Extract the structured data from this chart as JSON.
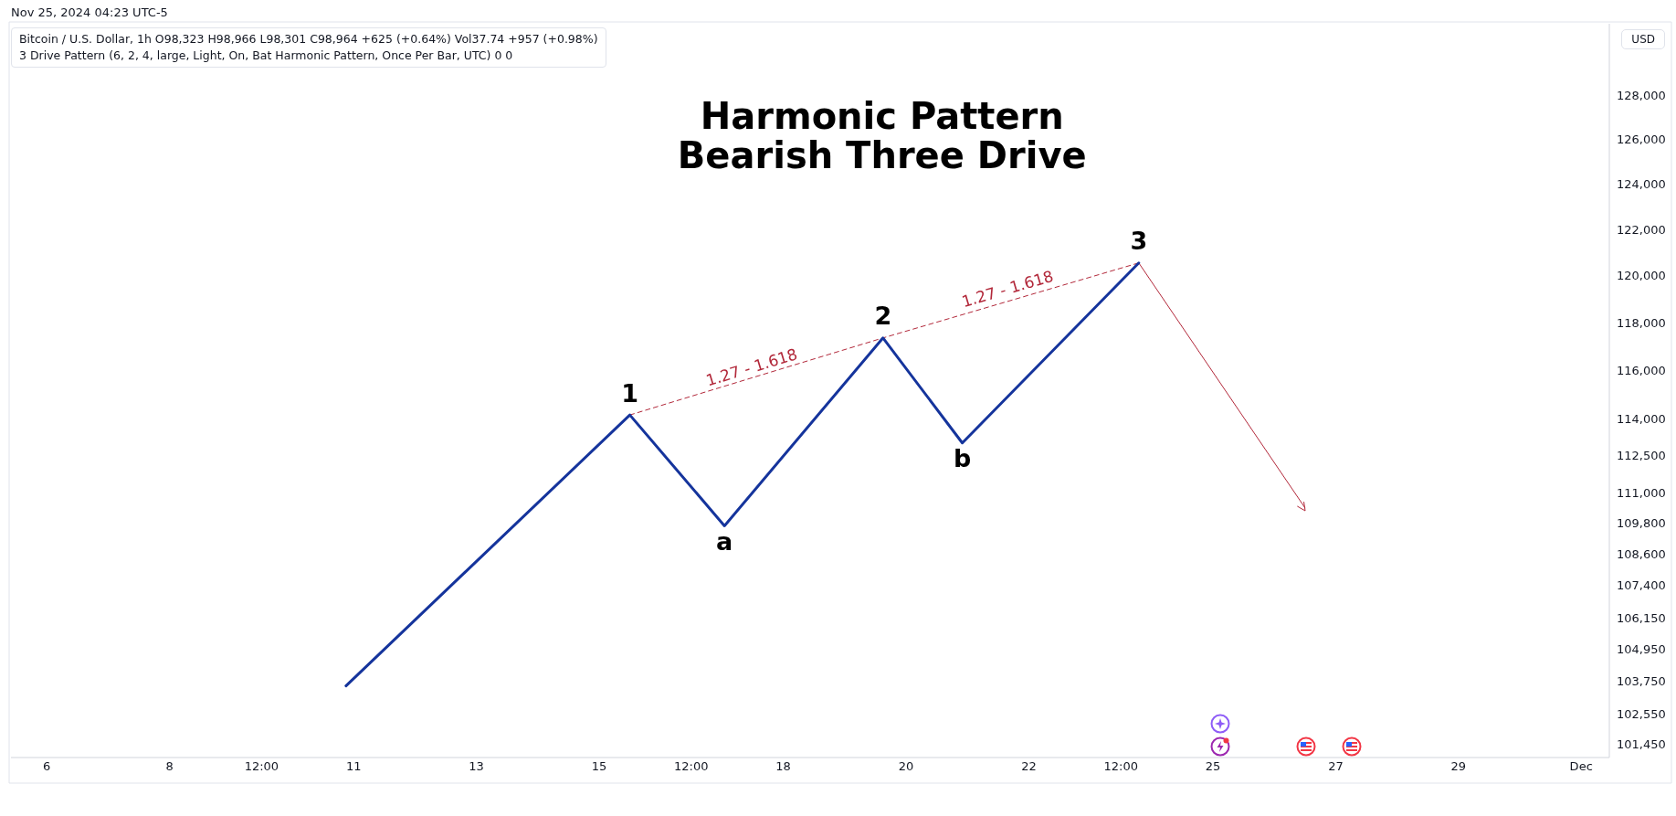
{
  "chart_data": {
    "type": "line",
    "title": "Harmonic Pattern",
    "subtitle": "Bearish Three Drive",
    "ylabel": "USD",
    "annotations": [
      "Nov 25, 2024 04:23 UTC-5",
      "Bitcoin / U.S. Dollar, 1h  O98,323  H98,966  L98,301  C98,964  +625 (+0.64%)  Vol37.74  +957 (+0.98%)",
      "3 Drive Pattern (6, 2, 4, large, Light, On, Bat Harmonic Pattern, Once Per Bar, UTC)  0  0",
      {
        "text": "1",
        "x": "2024-11-15T12:00",
        "y": 114200
      },
      {
        "text": "a",
        "x": "2024-11-17T01:00",
        "y": 109750
      },
      {
        "text": "2",
        "x": "2024-11-19T15:00",
        "y": 117400
      },
      {
        "text": "b",
        "x": "2024-11-20T22:00",
        "y": 113060
      },
      {
        "text": "3",
        "x": "2024-11-23T19:00",
        "y": 120600
      },
      {
        "text": "1.27 - 1.618",
        "x": "2024-11-17T13:00",
        "y": 115700
      },
      {
        "text": "1.27 - 1.618",
        "x": "2024-11-21T17:00",
        "y": 119000
      }
    ],
    "series": [
      {
        "type": "line",
        "color": "#15349c",
        "x": [
          "2024-11-10T21:00",
          "2024-11-15T12:00",
          "2024-11-17T01:00",
          "2024-11-19T15:00",
          "2024-11-20T22:00",
          "2024-11-23T19:00"
        ],
        "values": [
          103630,
          114200,
          109750,
          117400,
          113060,
          120600
        ]
      },
      {
        "type": "line",
        "color": "#b2283a",
        "line_style": "dashed",
        "x": [
          "2024-11-15T12:00",
          "2024-11-19T15:00",
          "2024-11-23T19:00"
        ],
        "values": [
          114200,
          117400,
          120600
        ]
      },
      {
        "type": "line",
        "color": "#b2283a",
        "x": [
          "2024-11-23T19:00",
          "2024-11-26T12:00"
        ],
        "values": [
          120600,
          110460
        ]
      }
    ],
    "log": "y",
    "legend": false,
    "grid": false,
    "xlim": [
      "2024-11-05T10:00",
      "2024-12-01T11:00"
    ],
    "xticks": [
      {
        "value": "2024-11-06",
        "label": "6"
      },
      {
        "value": "2024-11-08",
        "label": "8"
      },
      {
        "value": "2024-11-09T12:00",
        "label": "12:00"
      },
      {
        "value": "2024-11-11",
        "label": "11"
      },
      {
        "value": "2024-11-13",
        "label": "13"
      },
      {
        "value": "2024-11-15",
        "label": "15"
      },
      {
        "value": "2024-11-16T12:00",
        "label": "12:00"
      },
      {
        "value": "2024-11-18",
        "label": "18"
      },
      {
        "value": "2024-11-20",
        "label": "20"
      },
      {
        "value": "2024-11-22",
        "label": "22"
      },
      {
        "value": "2024-11-23T12:00",
        "label": "12:00"
      },
      {
        "value": "2024-11-25",
        "label": "25"
      },
      {
        "value": "2024-11-27",
        "label": "27"
      },
      {
        "value": "2024-11-29",
        "label": "29"
      },
      {
        "value": "2024-12-01",
        "label": "Dec"
      }
    ],
    "ylim": [
      101000,
      131400
    ],
    "yticks": [
      {
        "value": 101450,
        "label": "101,450"
      },
      {
        "value": 102550,
        "label": "102,550"
      },
      {
        "value": 103750,
        "label": "103,750"
      },
      {
        "value": 104950,
        "label": "104,950"
      },
      {
        "value": 106150,
        "label": "106,150"
      },
      {
        "value": 107400,
        "label": "107,400"
      },
      {
        "value": 108600,
        "label": "108,600"
      },
      {
        "value": 109800,
        "label": "109,800"
      },
      {
        "value": 111000,
        "label": "111,000"
      },
      {
        "value": 112500,
        "label": "112,500"
      },
      {
        "value": 114000,
        "label": "114,000"
      },
      {
        "value": 116000,
        "label": "116,000"
      },
      {
        "value": 118000,
        "label": "118,000"
      },
      {
        "value": 120000,
        "label": "120,000"
      },
      {
        "value": 122000,
        "label": "122,000"
      },
      {
        "value": 124000,
        "label": "124,000"
      },
      {
        "value": 126000,
        "label": "126,000"
      },
      {
        "value": 128000,
        "label": "128,000"
      }
    ]
  }
}
